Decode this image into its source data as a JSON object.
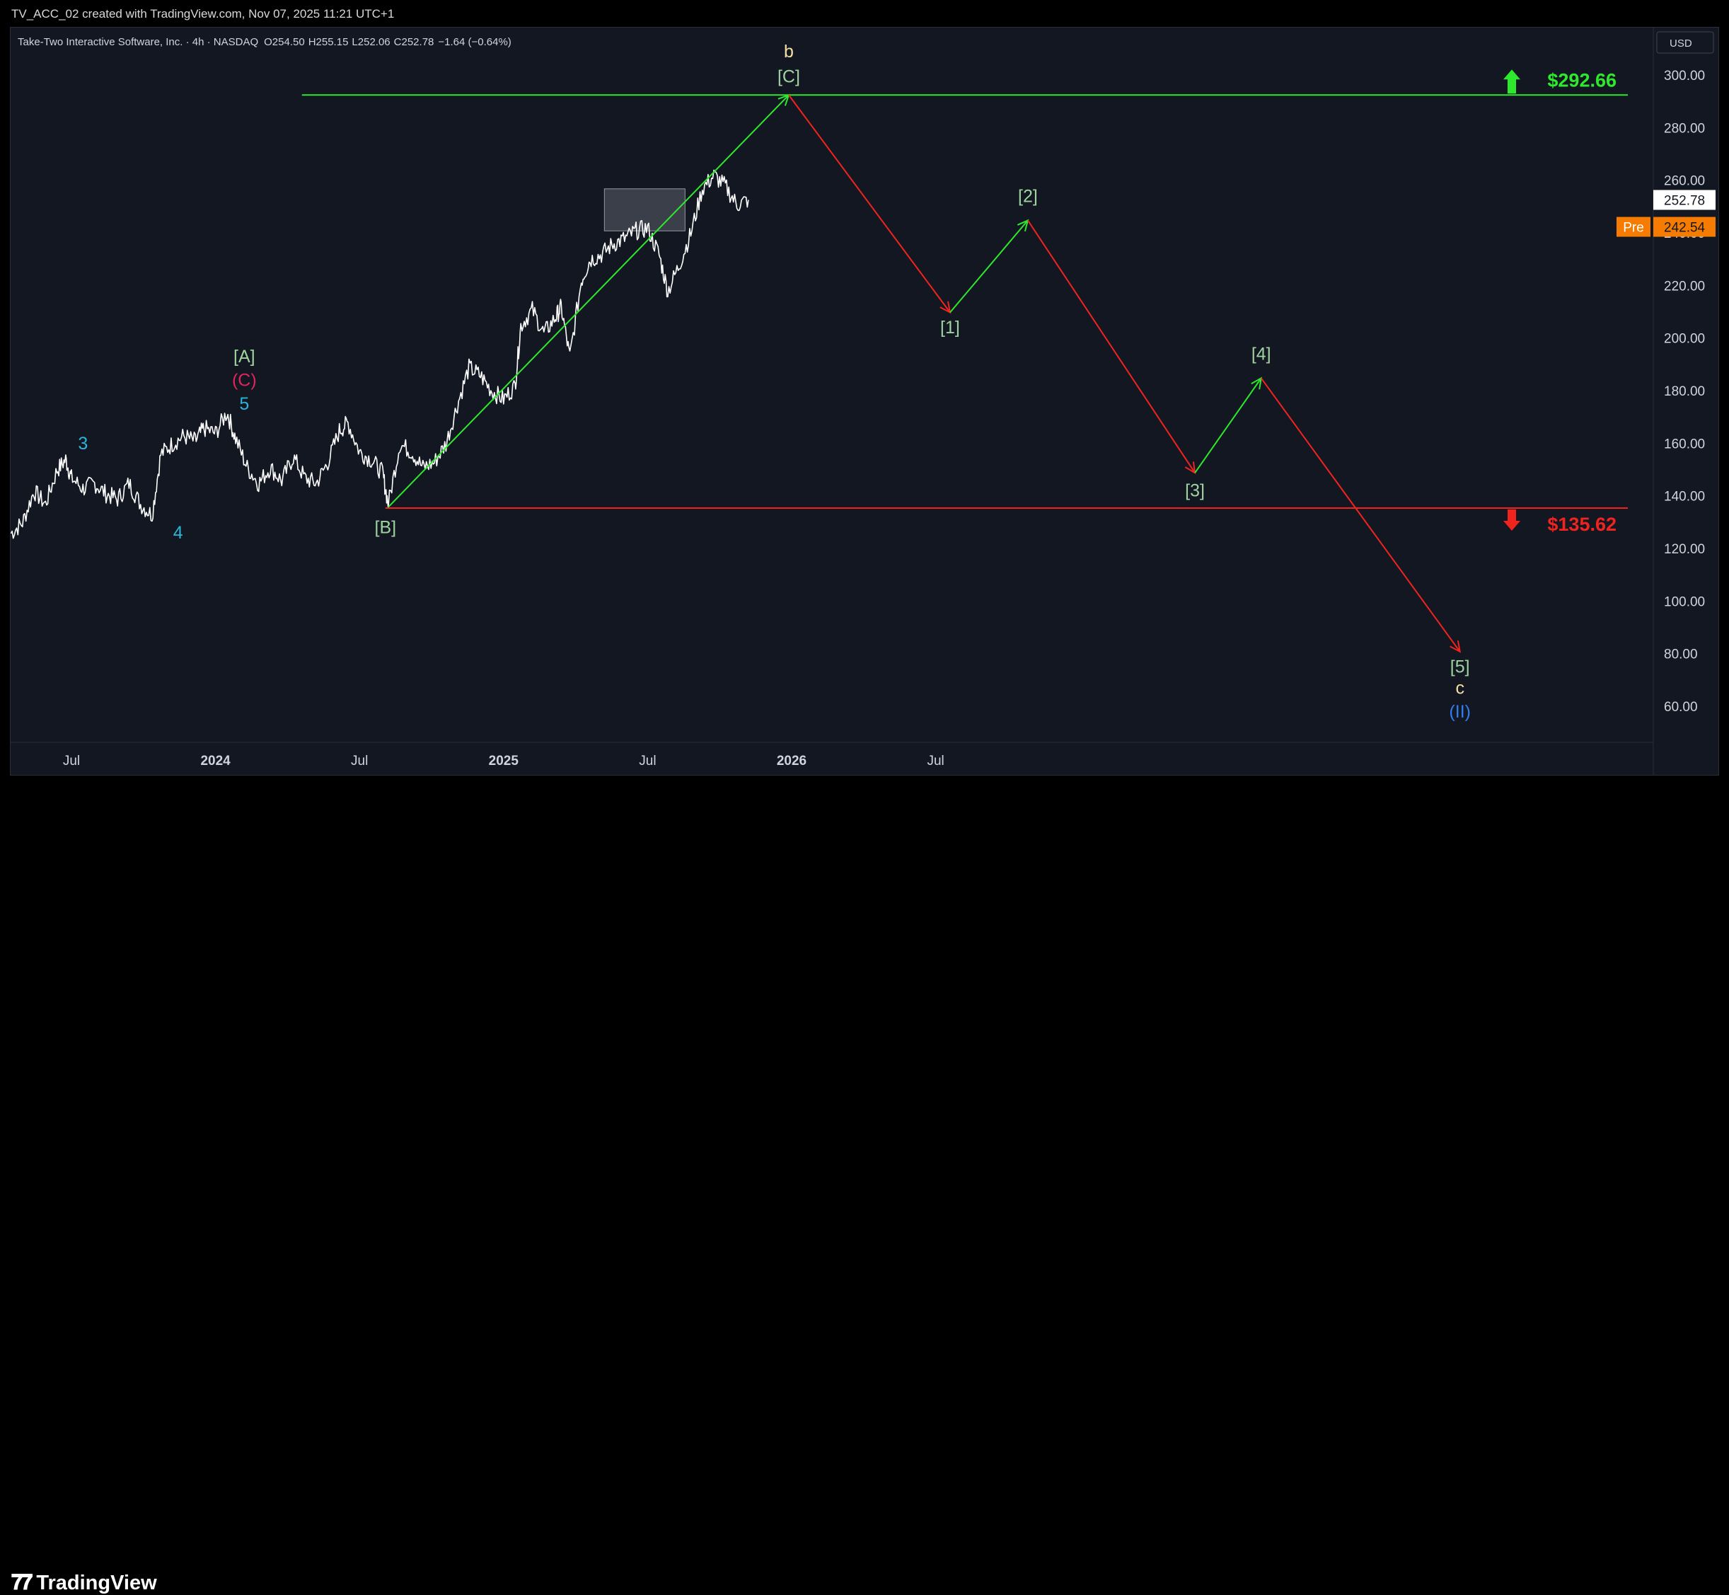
{
  "header": {
    "caption": "TV_ACC_02 created with TradingView.com, Nov 07, 2025 11:21 UTC+1"
  },
  "legend": {
    "symbol": "Take-Two Interactive Software, Inc. · 4h · NASDAQ",
    "open_label": "O",
    "open": "254.50",
    "high_label": "H",
    "high": "255.15",
    "low_label": "L",
    "low": "252.06",
    "close_label": "C",
    "close": "252.78",
    "change": "−1.64 (−0.64%)"
  },
  "currency_button": "USD",
  "brand": "TradingView",
  "colors": {
    "background": "#131722",
    "up": "#2ee82e",
    "down": "#f0241f",
    "price": "#ffffff",
    "pre": "#f57c00"
  },
  "chart_data": {
    "type": "line",
    "x_axis": {
      "ticks": [
        {
          "label": "Jul",
          "t": 2023.5
        },
        {
          "label": "2024",
          "t": 2024.0
        },
        {
          "label": "Jul",
          "t": 2024.5
        },
        {
          "label": "2025",
          "t": 2025.0
        },
        {
          "label": "Jul",
          "t": 2025.5
        },
        {
          "label": "2026",
          "t": 2026.0
        },
        {
          "label": "Jul",
          "t": 2026.5
        }
      ]
    },
    "y_axis": {
      "ylim": [
        50,
        310
      ],
      "ticks": [
        "60.00",
        "80.00",
        "100.00",
        "120.00",
        "140.00",
        "160.00",
        "180.00",
        "200.00",
        "220.00",
        "240.00",
        "260.00",
        "280.00",
        "300.00"
      ]
    },
    "price_series": [
      [
        2023.29,
        126
      ],
      [
        2023.33,
        130
      ],
      [
        2023.37,
        142
      ],
      [
        2023.41,
        137
      ],
      [
        2023.45,
        150
      ],
      [
        2023.48,
        154
      ],
      [
        2023.5,
        147
      ],
      [
        2023.54,
        143
      ],
      [
        2023.58,
        145
      ],
      [
        2023.62,
        141
      ],
      [
        2023.66,
        139
      ],
      [
        2023.7,
        145
      ],
      [
        2023.74,
        137
      ],
      [
        2023.78,
        133
      ],
      [
        2023.81,
        156
      ],
      [
        2023.85,
        160
      ],
      [
        2023.89,
        163
      ],
      [
        2023.93,
        161
      ],
      [
        2023.96,
        166
      ],
      [
        2024.0,
        164
      ],
      [
        2024.04,
        172
      ],
      [
        2024.07,
        162
      ],
      [
        2024.11,
        151
      ],
      [
        2024.15,
        145
      ],
      [
        2024.19,
        151
      ],
      [
        2024.23,
        146
      ],
      [
        2024.27,
        155
      ],
      [
        2024.31,
        147
      ],
      [
        2024.35,
        145
      ],
      [
        2024.39,
        153
      ],
      [
        2024.43,
        165
      ],
      [
        2024.46,
        168
      ],
      [
        2024.5,
        157
      ],
      [
        2024.54,
        154
      ],
      [
        2024.58,
        149
      ],
      [
        2024.6,
        137
      ],
      [
        2024.64,
        160
      ],
      [
        2024.68,
        157
      ],
      [
        2024.72,
        151
      ],
      [
        2024.76,
        153
      ],
      [
        2024.8,
        160
      ],
      [
        2024.84,
        175
      ],
      [
        2024.88,
        189
      ],
      [
        2024.92,
        186
      ],
      [
        2024.96,
        180
      ],
      [
        2025.0,
        177
      ],
      [
        2025.04,
        182
      ],
      [
        2025.06,
        205
      ],
      [
        2025.1,
        211
      ],
      [
        2025.14,
        202
      ],
      [
        2025.18,
        208
      ],
      [
        2025.2,
        212
      ],
      [
        2025.23,
        193
      ],
      [
        2025.27,
        222
      ],
      [
        2025.3,
        230
      ],
      [
        2025.34,
        232
      ],
      [
        2025.38,
        236
      ],
      [
        2025.42,
        238
      ],
      [
        2025.46,
        241
      ],
      [
        2025.5,
        242
      ],
      [
        2025.54,
        232
      ],
      [
        2025.57,
        218
      ],
      [
        2025.61,
        228
      ],
      [
        2025.65,
        240
      ],
      [
        2025.69,
        257
      ],
      [
        2025.73,
        262
      ],
      [
        2025.77,
        258
      ],
      [
        2025.81,
        251
      ],
      [
        2025.85,
        252.78
      ]
    ],
    "projection": [
      {
        "t": 2024.6,
        "y": 136,
        "color": "up"
      },
      {
        "t": 2025.99,
        "y": 292.66,
        "color": "down"
      },
      {
        "t": 2026.55,
        "y": 210,
        "color": "up"
      },
      {
        "t": 2026.82,
        "y": 245,
        "color": "down"
      },
      {
        "t": 2027.4,
        "y": 149,
        "color": "up"
      },
      {
        "t": 2027.63,
        "y": 185,
        "color": "down"
      },
      {
        "t": 2028.32,
        "y": 81
      }
    ],
    "levels": [
      {
        "label": "$292.66",
        "value": 292.66,
        "color": "up",
        "direction": "up",
        "from_t": 2024.3
      },
      {
        "label": "$135.62",
        "value": 135.62,
        "color": "down",
        "direction": "down",
        "from_t": 2024.59
      }
    ],
    "zone": {
      "t0": 2025.35,
      "t1": 2025.63,
      "y0": 241,
      "y1": 257
    },
    "price_labels": [
      {
        "label": "252.78",
        "value": 252.78,
        "tag": ""
      },
      {
        "label": "242.54",
        "value": 242.54,
        "tag": "Pre"
      }
    ],
    "wave_labels": [
      {
        "text": "3",
        "t": 2023.54,
        "y": 158,
        "color": "#29b6d8"
      },
      {
        "text": "4",
        "t": 2023.87,
        "y": 124,
        "color": "#29b6d8"
      },
      {
        "text": "[A]",
        "t": 2024.1,
        "y": 191,
        "color": "#9fd39f"
      },
      {
        "text": "(C)",
        "t": 2024.1,
        "y": 182,
        "color": "#e0245e"
      },
      {
        "text": "5",
        "t": 2024.1,
        "y": 173,
        "color": "#29b6d8"
      },
      {
        "text": "[B]",
        "t": 2024.59,
        "y": 126,
        "color": "#9fd39f"
      },
      {
        "text": "b",
        "t": 2025.99,
        "y": 307,
        "color": "#f5dfa0"
      },
      {
        "text": "[C]",
        "t": 2025.99,
        "y": 297.5,
        "color": "#9fd39f"
      },
      {
        "text": "[1]",
        "t": 2026.55,
        "y": 202,
        "color": "#9fd39f"
      },
      {
        "text": "[2]",
        "t": 2026.82,
        "y": 252,
        "color": "#9fd39f"
      },
      {
        "text": "[3]",
        "t": 2027.4,
        "y": 140,
        "color": "#9fd39f"
      },
      {
        "text": "[4]",
        "t": 2027.63,
        "y": 192,
        "color": "#9fd39f"
      },
      {
        "text": "[5]",
        "t": 2028.32,
        "y": 73,
        "color": "#9fd39f"
      },
      {
        "text": "c",
        "t": 2028.32,
        "y": 65,
        "color": "#f5dfa0"
      },
      {
        "text": "(II)",
        "t": 2028.32,
        "y": 56,
        "color": "#2f7df0"
      }
    ]
  }
}
